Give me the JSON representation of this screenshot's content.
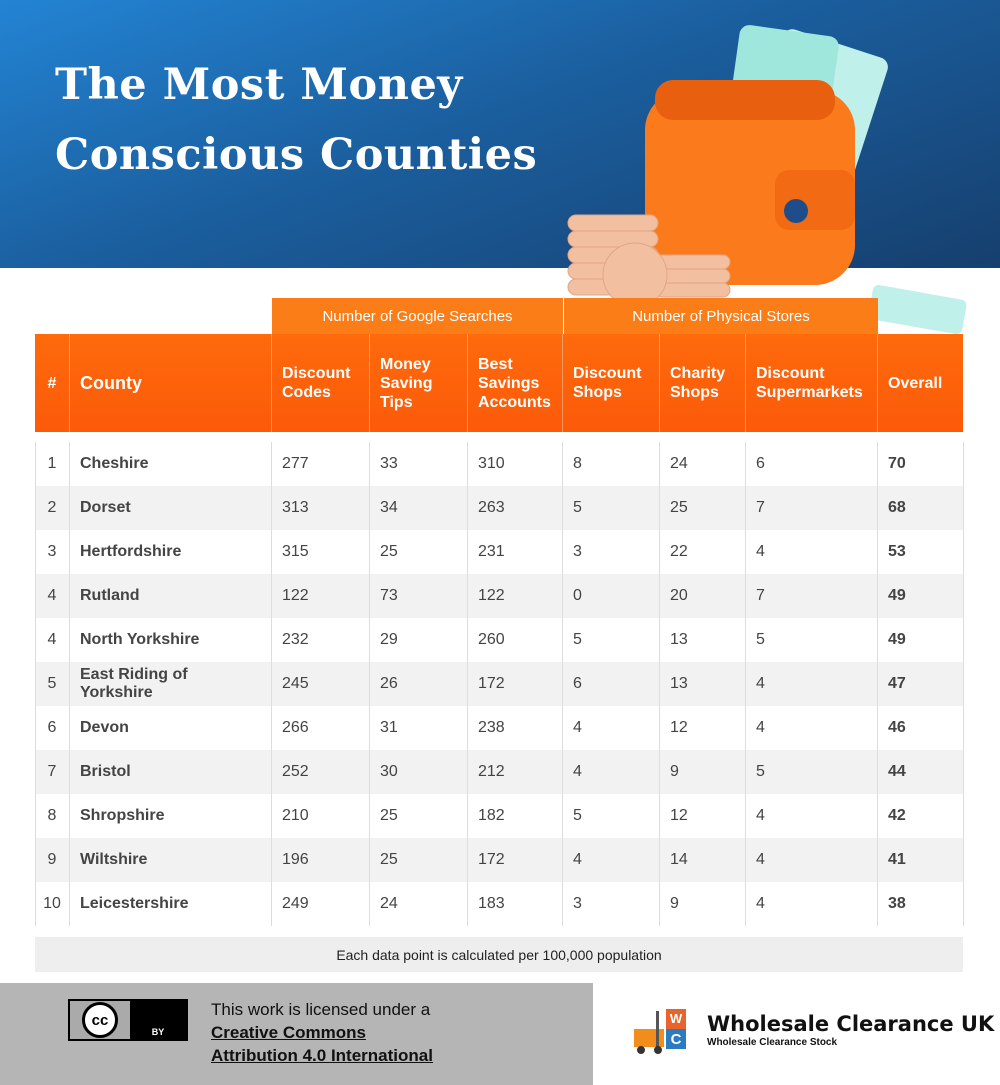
{
  "header": {
    "title_lines": [
      "The Most Money",
      "Conscious Counties"
    ]
  },
  "table": {
    "groups": [
      "Number of Google Searches",
      "Number of Physical Stores"
    ],
    "columns": [
      "#",
      "County",
      "Discount Codes",
      "Money Saving Tips",
      "Best Savings Accounts",
      "Discount Shops",
      "Charity Shops",
      "Discount Supermarkets",
      "Overall"
    ],
    "rows": [
      [
        1,
        "Cheshire",
        277,
        33,
        310,
        8,
        24,
        6,
        70
      ],
      [
        2,
        "Dorset",
        313,
        34,
        263,
        5,
        25,
        7,
        68
      ],
      [
        3,
        "Hertfordshire",
        315,
        25,
        231,
        3,
        22,
        4,
        53
      ],
      [
        4,
        "Rutland",
        122,
        73,
        122,
        0,
        20,
        7,
        49
      ],
      [
        4,
        "North Yorkshire",
        232,
        29,
        260,
        5,
        13,
        5,
        49
      ],
      [
        5,
        "East Riding of Yorkshire",
        245,
        26,
        172,
        6,
        13,
        4,
        47
      ],
      [
        6,
        "Devon",
        266,
        31,
        238,
        4,
        12,
        4,
        46
      ],
      [
        7,
        "Bristol",
        252,
        30,
        212,
        4,
        9,
        5,
        44
      ],
      [
        8,
        "Shropshire",
        210,
        25,
        182,
        5,
        12,
        4,
        42
      ],
      [
        9,
        "Wiltshire",
        196,
        25,
        172,
        4,
        14,
        4,
        41
      ],
      [
        10,
        "Leicestershire",
        249,
        24,
        183,
        3,
        9,
        4,
        38
      ]
    ],
    "footnote": "Each data point is calculated per 100,000 population"
  },
  "license": {
    "badge": [
      "cc",
      "BY"
    ],
    "text": "This work is licensed under a",
    "link_lines": [
      "Creative Commons",
      "Attribution 4.0 International"
    ]
  },
  "brand": {
    "logo_letters": [
      "W",
      "C"
    ],
    "name": "Wholesale Clearance UK",
    "tagline": "Wholesale Clearance Stock"
  }
}
